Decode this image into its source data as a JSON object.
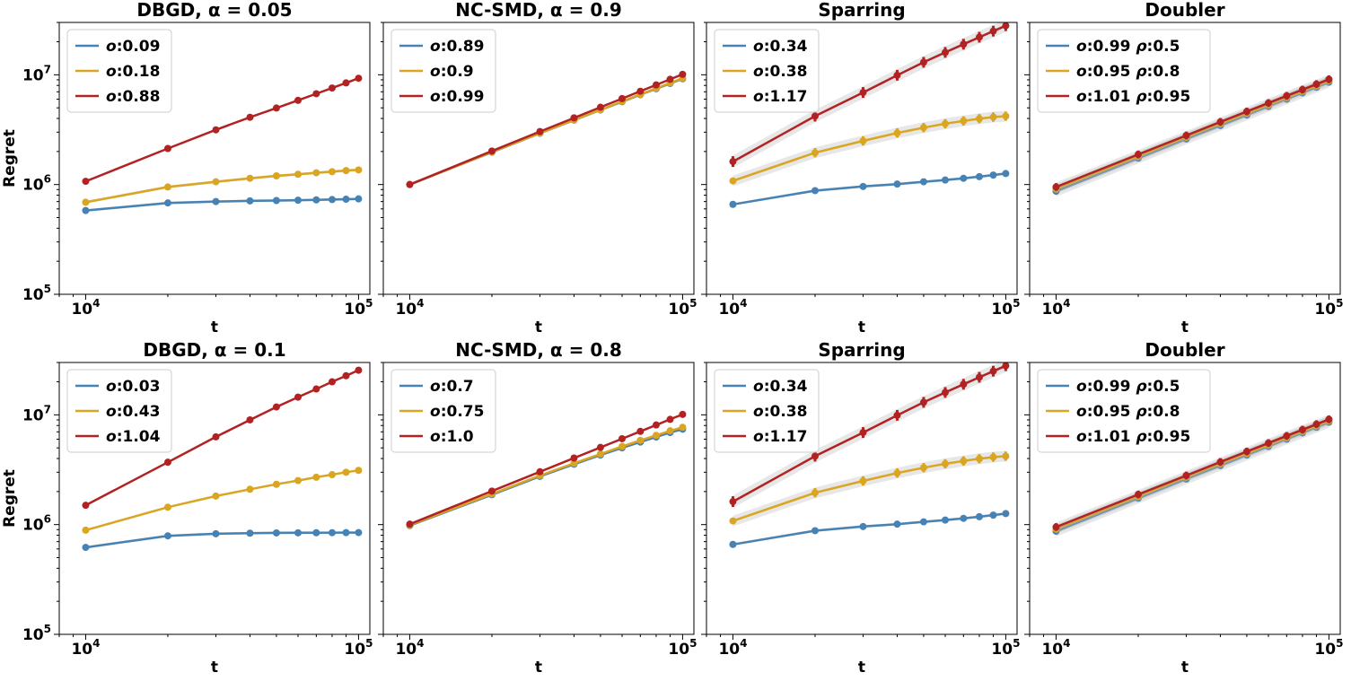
{
  "chart_data": [
    {
      "type": "line",
      "panel": "top-1",
      "title": "DBGD, α = 0.05",
      "xlabel": "t",
      "ylabel": "Regret",
      "xscale": "log",
      "yscale": "log",
      "xlim": [
        8000,
        110000
      ],
      "ylim": [
        100000,
        30000000
      ],
      "xticks": [
        {
          "value": 10000,
          "base": "10",
          "exp": "4"
        },
        {
          "value": 100000,
          "base": "10",
          "exp": "5"
        }
      ],
      "yticks": [
        {
          "value": 100000,
          "base": "10",
          "exp": "5"
        },
        {
          "value": 1000000,
          "base": "10",
          "exp": "6"
        },
        {
          "value": 10000000,
          "base": "10",
          "exp": "7"
        }
      ],
      "legend_loc": "upper-left",
      "x": [
        10000,
        20000,
        30000,
        40000,
        50000,
        60000,
        70000,
        80000,
        90000,
        100000
      ],
      "series": [
        {
          "name": "o:0.09",
          "sym": "o",
          "val": ":0.09",
          "color": "#4682b4",
          "values": [
            580000,
            680000,
            700000,
            710000,
            715000,
            720000,
            725000,
            730000,
            735000,
            740000
          ],
          "band": 0.03
        },
        {
          "name": "o:0.18",
          "sym": "o",
          "val": ":0.18",
          "color": "#daa520",
          "values": [
            690000,
            950000,
            1060000,
            1140000,
            1200000,
            1240000,
            1280000,
            1310000,
            1340000,
            1360000
          ],
          "band": 0.03
        },
        {
          "name": "o:0.88",
          "sym": "o",
          "val": ":0.88",
          "color": "#b22222",
          "values": [
            1070000,
            2130000,
            3150000,
            4100000,
            4980000,
            5850000,
            6720000,
            7580000,
            8440000,
            9300000
          ],
          "band": 0.0
        }
      ]
    },
    {
      "type": "line",
      "panel": "top-2",
      "title": "NC-SMD, α = 0.9",
      "xlabel": "t",
      "ylabel": "",
      "xscale": "log",
      "yscale": "log",
      "xlim": [
        8000,
        110000
      ],
      "ylim": [
        100000,
        30000000
      ],
      "xticks": [
        {
          "value": 10000,
          "base": "10",
          "exp": "4"
        },
        {
          "value": 100000,
          "base": "10",
          "exp": "5"
        }
      ],
      "yticks": [],
      "legend_loc": "upper-left",
      "x": [
        10000,
        20000,
        30000,
        40000,
        50000,
        60000,
        70000,
        80000,
        90000,
        100000
      ],
      "series": [
        {
          "name": "o:0.89",
          "sym": "o",
          "val": ":0.89",
          "color": "#4682b4",
          "values": [
            1000000,
            1970000,
            2930000,
            3860000,
            4780000,
            5680000,
            6580000,
            7460000,
            8330000,
            9200000
          ],
          "band": 0.0
        },
        {
          "name": "o:0.9",
          "sym": "o",
          "val": ":0.9",
          "color": "#daa520",
          "values": [
            1000000,
            1980000,
            2940000,
            3880000,
            4800000,
            5720000,
            6630000,
            7530000,
            8420000,
            9300000
          ],
          "band": 0.0
        },
        {
          "name": "o:0.99",
          "sym": "o",
          "val": ":0.99",
          "color": "#b22222",
          "values": [
            1000000,
            2020000,
            3040000,
            4050000,
            5060000,
            6070000,
            7080000,
            8090000,
            9100000,
            10100000
          ],
          "band": 0.0
        }
      ]
    },
    {
      "type": "line",
      "panel": "top-3",
      "title": "Sparring",
      "xlabel": "t",
      "ylabel": "",
      "xscale": "log",
      "yscale": "log",
      "xlim": [
        8000,
        110000
      ],
      "ylim": [
        100000,
        30000000
      ],
      "xticks": [
        {
          "value": 10000,
          "base": "10",
          "exp": "4"
        },
        {
          "value": 100000,
          "base": "10",
          "exp": "5"
        }
      ],
      "yticks": [],
      "legend_loc": "upper-left",
      "x": [
        10000,
        20000,
        30000,
        40000,
        50000,
        60000,
        70000,
        80000,
        90000,
        100000
      ],
      "series": [
        {
          "name": "o:0.34",
          "sym": "o",
          "val": ":0.34",
          "color": "#4682b4",
          "values": [
            660000,
            880000,
            960000,
            1010000,
            1060000,
            1100000,
            1140000,
            1180000,
            1220000,
            1260000
          ],
          "band": 0.03
        },
        {
          "name": "o:0.38",
          "sym": "o",
          "val": ":0.38",
          "color": "#daa520",
          "values": [
            1080000,
            1950000,
            2500000,
            2950000,
            3300000,
            3580000,
            3800000,
            3980000,
            4120000,
            4200000
          ],
          "band": 0.12,
          "errbar": [
            false,
            true,
            true,
            true,
            true,
            true,
            true,
            true,
            true,
            true
          ]
        },
        {
          "name": "o:1.17",
          "sym": "o",
          "val": ":1.17",
          "color": "#b22222",
          "values": [
            1620000,
            4200000,
            6900000,
            9900000,
            13000000,
            16000000,
            19000000,
            22000000,
            25000000,
            28000000
          ],
          "band": 0.14,
          "errbar": [
            true,
            true,
            true,
            true,
            true,
            true,
            true,
            true,
            true,
            true
          ]
        }
      ]
    },
    {
      "type": "line",
      "panel": "top-4",
      "title": "Doubler",
      "xlabel": "t",
      "ylabel": "",
      "xscale": "log",
      "yscale": "log",
      "xlim": [
        8000,
        110000
      ],
      "ylim": [
        100000,
        30000000
      ],
      "xticks": [
        {
          "value": 10000,
          "base": "10",
          "exp": "4"
        },
        {
          "value": 100000,
          "base": "10",
          "exp": "5"
        }
      ],
      "yticks": [],
      "legend_loc": "upper-left",
      "x": [
        10000,
        20000,
        30000,
        40000,
        50000,
        60000,
        70000,
        80000,
        90000,
        100000
      ],
      "series": [
        {
          "name": "o:0.99 ρ:0.5",
          "sym": "o",
          "val": ":0.99 ",
          "sym2": "ρ",
          "val2": ":0.5",
          "color": "#4682b4",
          "values": [
            870000,
            1740000,
            2600000,
            3450000,
            4300000,
            5150000,
            6000000,
            6850000,
            7700000,
            8550000
          ],
          "band": 0.12
        },
        {
          "name": "o:0.95 ρ:0.8",
          "sym": "o",
          "val": ":0.95 ",
          "sym2": "ρ",
          "val2": ":0.8",
          "color": "#daa520",
          "values": [
            910000,
            1800000,
            2700000,
            3580000,
            4450000,
            5320000,
            6200000,
            7070000,
            7930000,
            8800000
          ],
          "band": 0.1
        },
        {
          "name": "o:1.01 ρ:0.95",
          "sym": "o",
          "val": ":1.01 ",
          "sym2": "ρ",
          "val2": ":0.95",
          "color": "#b22222",
          "values": [
            950000,
            1880000,
            2800000,
            3720000,
            4630000,
            5530000,
            6430000,
            7330000,
            8220000,
            9100000
          ],
          "band": 0.1,
          "errbar": [
            true,
            true,
            true,
            true,
            true,
            true,
            true,
            true,
            true,
            true
          ]
        }
      ]
    },
    {
      "type": "line",
      "panel": "bottom-1",
      "title": "DBGD, α = 0.1",
      "xlabel": "t",
      "ylabel": "Regret",
      "xscale": "log",
      "yscale": "log",
      "xlim": [
        8000,
        110000
      ],
      "ylim": [
        100000,
        30000000
      ],
      "xticks": [
        {
          "value": 10000,
          "base": "10",
          "exp": "4"
        },
        {
          "value": 100000,
          "base": "10",
          "exp": "5"
        }
      ],
      "yticks": [
        {
          "value": 100000,
          "base": "10",
          "exp": "5"
        },
        {
          "value": 1000000,
          "base": "10",
          "exp": "6"
        },
        {
          "value": 10000000,
          "base": "10",
          "exp": "7"
        }
      ],
      "legend_loc": "upper-left",
      "x": [
        10000,
        20000,
        30000,
        40000,
        50000,
        60000,
        70000,
        80000,
        90000,
        100000
      ],
      "series": [
        {
          "name": "o:0.03",
          "sym": "o",
          "val": ":0.03",
          "color": "#4682b4",
          "values": [
            620000,
            790000,
            825000,
            835000,
            840000,
            842000,
            843000,
            844000,
            845000,
            846000
          ],
          "band": 0.03
        },
        {
          "name": "o:0.43",
          "sym": "o",
          "val": ":0.43",
          "color": "#daa520",
          "values": [
            890000,
            1440000,
            1820000,
            2100000,
            2330000,
            2520000,
            2700000,
            2850000,
            3000000,
            3120000
          ],
          "band": 0.02
        },
        {
          "name": "o:1.04",
          "sym": "o",
          "val": ":1.04",
          "color": "#b22222",
          "values": [
            1500000,
            3700000,
            6300000,
            9000000,
            11800000,
            14500000,
            17200000,
            20000000,
            22700000,
            25500000
          ],
          "band": 0.0
        }
      ]
    },
    {
      "type": "line",
      "panel": "bottom-2",
      "title": "NC-SMD, α = 0.8",
      "xlabel": "t",
      "ylabel": "",
      "xscale": "log",
      "yscale": "log",
      "xlim": [
        8000,
        110000
      ],
      "ylim": [
        100000,
        30000000
      ],
      "xticks": [
        {
          "value": 10000,
          "base": "10",
          "exp": "4"
        },
        {
          "value": 100000,
          "base": "10",
          "exp": "5"
        }
      ],
      "yticks": [],
      "legend_loc": "upper-left",
      "x": [
        10000,
        20000,
        30000,
        40000,
        50000,
        60000,
        70000,
        80000,
        90000,
        100000
      ],
      "series": [
        {
          "name": "o:0.7",
          "sym": "o",
          "val": ":0.7",
          "color": "#4682b4",
          "values": [
            980000,
            1870000,
            2750000,
            3550000,
            4300000,
            5000000,
            5650000,
            6280000,
            6900000,
            7400000
          ],
          "band": 0.02
        },
        {
          "name": "o:0.75",
          "sym": "o",
          "val": ":0.75",
          "color": "#daa520",
          "values": [
            990000,
            1900000,
            2800000,
            3620000,
            4400000,
            5150000,
            5850000,
            6500000,
            7150000,
            7700000
          ],
          "band": 0.02
        },
        {
          "name": "o:1.0",
          "sym": "o",
          "val": ":1.0",
          "color": "#b22222",
          "values": [
            1010000,
            2020000,
            3030000,
            4040000,
            5050000,
            6060000,
            7070000,
            8080000,
            9090000,
            10100000
          ],
          "band": 0.0
        }
      ]
    },
    {
      "type": "line",
      "panel": "bottom-3",
      "title": "Sparring",
      "xlabel": "t",
      "ylabel": "",
      "xscale": "log",
      "yscale": "log",
      "xlim": [
        8000,
        110000
      ],
      "ylim": [
        100000,
        30000000
      ],
      "xticks": [
        {
          "value": 10000,
          "base": "10",
          "exp": "4"
        },
        {
          "value": 100000,
          "base": "10",
          "exp": "5"
        }
      ],
      "yticks": [],
      "legend_loc": "upper-left",
      "x": [
        10000,
        20000,
        30000,
        40000,
        50000,
        60000,
        70000,
        80000,
        90000,
        100000
      ],
      "series": [
        {
          "name": "o:0.34",
          "sym": "o",
          "val": ":0.34",
          "color": "#4682b4",
          "values": [
            660000,
            880000,
            960000,
            1010000,
            1060000,
            1100000,
            1140000,
            1180000,
            1220000,
            1260000
          ],
          "band": 0.03
        },
        {
          "name": "o:0.38",
          "sym": "o",
          "val": ":0.38",
          "color": "#daa520",
          "values": [
            1080000,
            1950000,
            2500000,
            2950000,
            3300000,
            3580000,
            3800000,
            3980000,
            4120000,
            4200000
          ],
          "band": 0.12,
          "errbar": [
            false,
            true,
            true,
            true,
            true,
            true,
            true,
            true,
            true,
            true
          ]
        },
        {
          "name": "o:1.17",
          "sym": "o",
          "val": ":1.17",
          "color": "#b22222",
          "values": [
            1620000,
            4200000,
            6900000,
            9900000,
            13000000,
            16000000,
            19000000,
            22000000,
            25000000,
            28000000
          ],
          "band": 0.14,
          "errbar": [
            true,
            true,
            true,
            true,
            true,
            true,
            true,
            true,
            true,
            true
          ]
        }
      ]
    },
    {
      "type": "line",
      "panel": "bottom-4",
      "title": "Doubler",
      "xlabel": "t",
      "ylabel": "",
      "xscale": "log",
      "yscale": "log",
      "xlim": [
        8000,
        110000
      ],
      "ylim": [
        100000,
        30000000
      ],
      "xticks": [
        {
          "value": 10000,
          "base": "10",
          "exp": "4"
        },
        {
          "value": 100000,
          "base": "10",
          "exp": "5"
        }
      ],
      "yticks": [],
      "legend_loc": "upper-left",
      "x": [
        10000,
        20000,
        30000,
        40000,
        50000,
        60000,
        70000,
        80000,
        90000,
        100000
      ],
      "series": [
        {
          "name": "o:0.99 ρ:0.5",
          "sym": "o",
          "val": ":0.99 ",
          "sym2": "ρ",
          "val2": ":0.5",
          "color": "#4682b4",
          "values": [
            870000,
            1740000,
            2600000,
            3450000,
            4300000,
            5150000,
            6000000,
            6850000,
            7700000,
            8550000
          ],
          "band": 0.12
        },
        {
          "name": "o:0.95 ρ:0.8",
          "sym": "o",
          "val": ":0.95 ",
          "sym2": "ρ",
          "val2": ":0.8",
          "color": "#daa520",
          "values": [
            910000,
            1800000,
            2700000,
            3580000,
            4450000,
            5320000,
            6200000,
            7070000,
            7930000,
            8800000
          ],
          "band": 0.1
        },
        {
          "name": "o:1.01 ρ:0.95",
          "sym": "o",
          "val": ":1.01 ",
          "sym2": "ρ",
          "val2": ":0.95",
          "color": "#b22222",
          "values": [
            950000,
            1880000,
            2800000,
            3720000,
            4630000,
            5530000,
            6430000,
            7330000,
            8220000,
            9100000
          ],
          "band": 0.1,
          "errbar": [
            true,
            true,
            true,
            true,
            true,
            true,
            true,
            true,
            true,
            true
          ]
        }
      ]
    }
  ]
}
